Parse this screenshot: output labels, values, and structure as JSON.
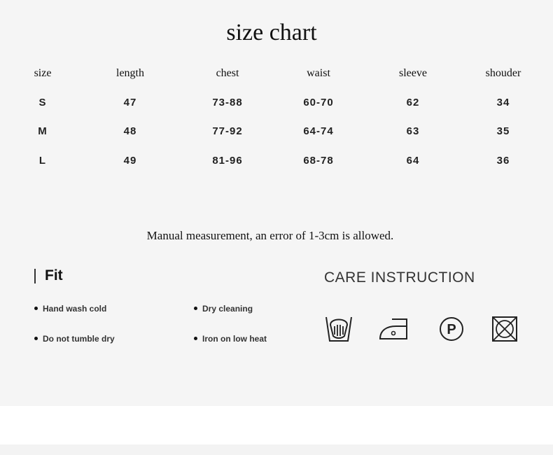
{
  "title": "size chart",
  "table": {
    "headers": [
      "size",
      "length",
      "chest",
      "waist",
      "sleeve",
      "shouder"
    ],
    "rows": [
      [
        "S",
        "47",
        "73-88",
        "60-70",
        "62",
        "34"
      ],
      [
        "M",
        "48",
        "77-92",
        "64-74",
        "63",
        "35"
      ],
      [
        "L",
        "49",
        "81-96",
        "68-78",
        "64",
        "36"
      ]
    ]
  },
  "note": "Manual measurement, an error of 1-3cm is allowed.",
  "fit": {
    "heading": "Fit",
    "items": [
      "Hand wash cold",
      "Dry cleaning",
      "Do not tumble dry",
      "Iron on low heat"
    ]
  },
  "care": {
    "heading": "CARE INSTRUCTION",
    "icons": [
      "hand-wash-icon",
      "iron-low-heat-icon",
      "dry-clean-p-icon",
      "do-not-tumble-dry-icon"
    ]
  }
}
